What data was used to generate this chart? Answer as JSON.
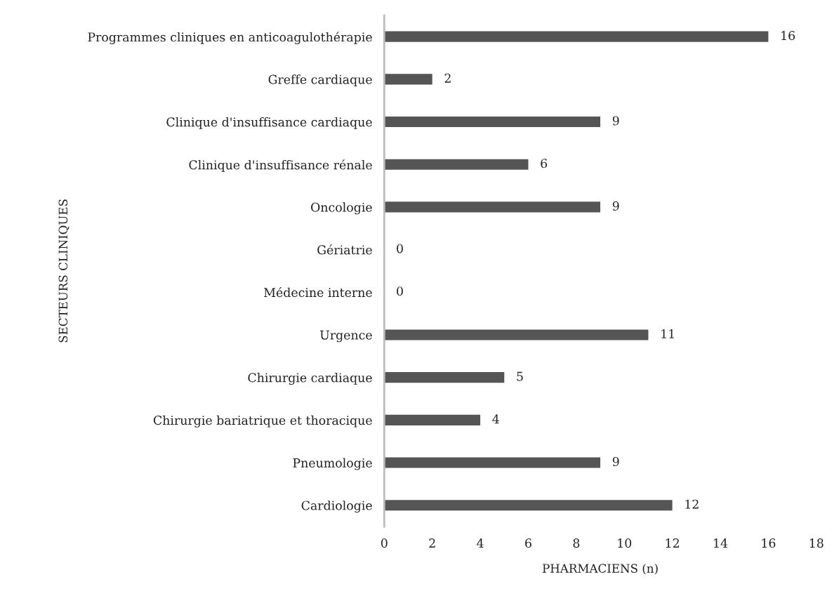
{
  "chart_data": {
    "type": "bar",
    "orientation": "horizontal",
    "xlabel": "PHARMACIENS (n)",
    "ylabel": "SECTEURS CLINIQUES",
    "categories": [
      "Programmes cliniques en anticoagulothérapie",
      "Greffe cardiaque",
      "Clinique d'insuffisance cardiaque",
      "Clinique d'insuffisance rénale",
      "Oncologie",
      "Gériatrie",
      "Médecine interne",
      "Urgence",
      "Chirurgie cardiaque",
      "Chirurgie bariatrique et thoracique",
      "Pneumologie",
      "Cardiologie"
    ],
    "values": [
      16,
      2,
      9,
      6,
      9,
      0,
      0,
      11,
      5,
      4,
      9,
      12
    ],
    "color": "#555555",
    "xlim": [
      0,
      18
    ],
    "xticks": [
      0,
      2,
      4,
      6,
      8,
      10,
      12,
      14,
      16,
      18
    ],
    "data_labels": true,
    "grid": false,
    "legend": false
  }
}
